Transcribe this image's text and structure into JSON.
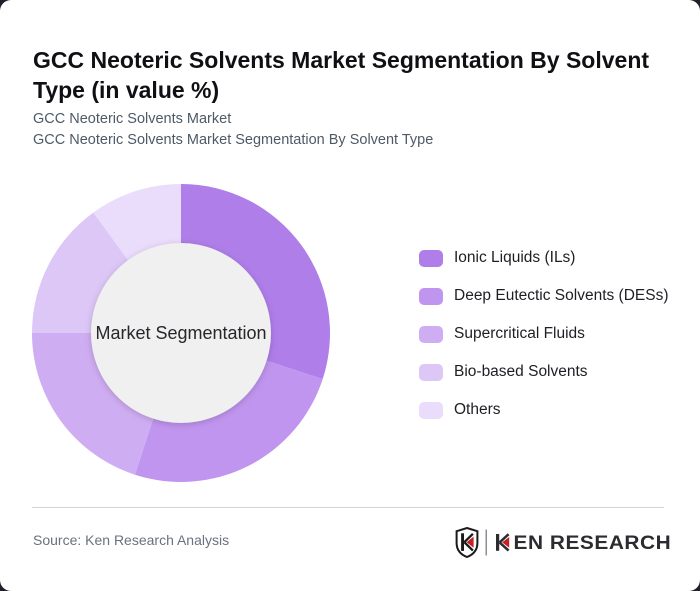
{
  "header": {
    "title": "GCC Neoteric Solvents Market Segmentation By Solvent Type (in value %)",
    "subtitle_line1": "GCC Neoteric Solvents Market",
    "subtitle_line2": "GCC Neoteric Solvents Market Segmentation By Solvent Type"
  },
  "chart_data": {
    "type": "pie",
    "variant": "donut",
    "title": "GCC Neoteric Solvents Market Segmentation By Solvent Type (in value %)",
    "unit": "value %",
    "center_label": "Market Segmentation",
    "categories": [
      "Ionic Liquids (ILs)",
      "Deep Eutectic Solvents (DESs)",
      "Supercritical Fluids",
      "Bio-based Solvents",
      "Others"
    ],
    "values": [
      30,
      25,
      20,
      15,
      10
    ],
    "colors": [
      "#af7ee9",
      "#c095ef",
      "#cfadf2",
      "#dcc7f7",
      "#eadcfb"
    ],
    "hole_color": "#f0f0f0",
    "start_angle_deg": 0,
    "direction": "clockwise",
    "legend_position": "right"
  },
  "footer": {
    "source": "Source: Ken Research Analysis",
    "logo_text": "KEN RESEARCH"
  },
  "colors": {
    "accent_purple": "#af7ee9",
    "logo_red": "#c42127",
    "title_text": "#101014",
    "subtitle_text": "#4e5a67",
    "source_text": "#68737f",
    "divider": "#d4d4d4",
    "page_background": "#20202b",
    "card_background": "#ffffff"
  }
}
